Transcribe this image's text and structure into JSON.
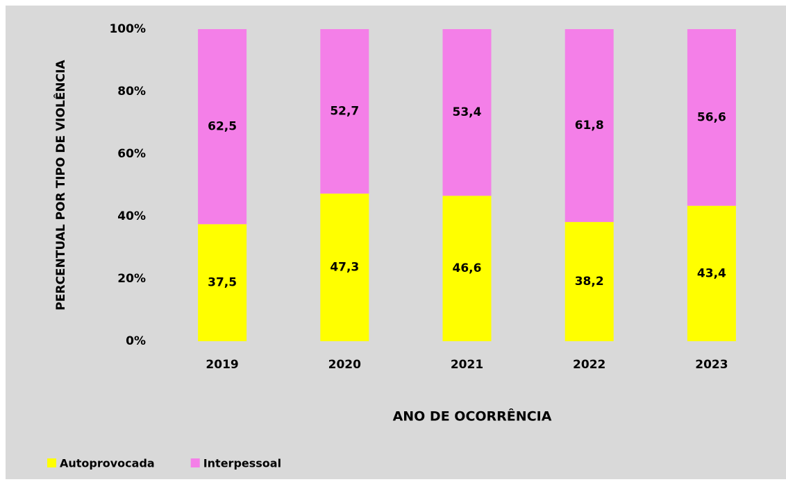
{
  "chart_data": {
    "type": "stacked_bar",
    "x_label": "ANO DE OCORRÊNCIA",
    "y_label": "PERCENTUAL POR TIPO DE VIOLÊNCIA",
    "categories": [
      "2019",
      "2020",
      "2021",
      "2022",
      "2023"
    ],
    "series": [
      {
        "name": "Autoprovocada",
        "color": "#ffff00",
        "values": [
          37.5,
          47.3,
          46.6,
          38.2,
          43.4
        ],
        "value_labels": [
          "37,5",
          "47,3",
          "46,6",
          "38,2",
          "43,4"
        ]
      },
      {
        "name": "Interpessoal",
        "color": "#f47fe8",
        "values": [
          62.5,
          52.7,
          53.4,
          61.8,
          56.6
        ],
        "value_labels": [
          "62,5",
          "52,7",
          "53,4",
          "61,8",
          "56,6"
        ]
      }
    ],
    "ylim": [
      0,
      100
    ],
    "yticks": [
      {
        "value": 0,
        "label": "0%"
      },
      {
        "value": 20,
        "label": "20%"
      },
      {
        "value": 40,
        "label": "40%"
      },
      {
        "value": 60,
        "label": "60%"
      },
      {
        "value": 80,
        "label": "80%"
      },
      {
        "value": 100,
        "label": "100%"
      }
    ],
    "legend": "bottom-left"
  }
}
